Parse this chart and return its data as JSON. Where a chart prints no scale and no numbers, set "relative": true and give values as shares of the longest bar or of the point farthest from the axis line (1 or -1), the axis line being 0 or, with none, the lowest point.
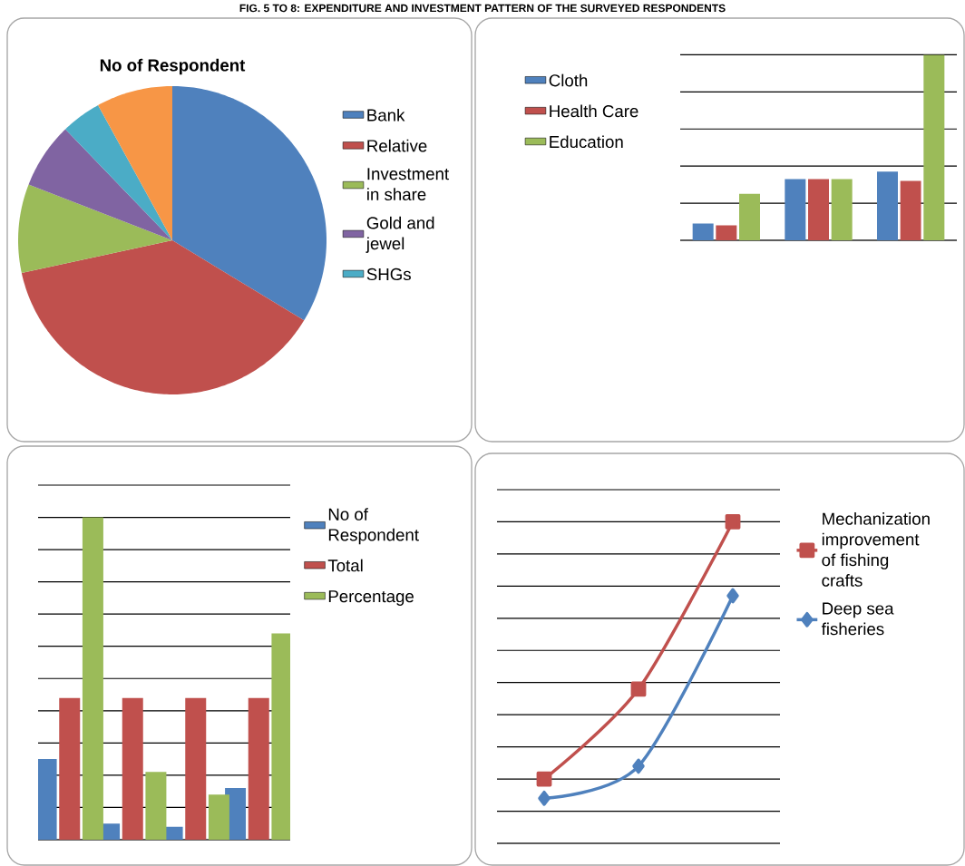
{
  "chart_data": [
    {
      "type": "pie",
      "title": "No of Respondent",
      "annotations": [
        "FIG. 5 TO 8: EXPENDITURE AND INVESTMENT PATTERN OF THE SURVEYED RESPONDENTS"
      ],
      "categories": [
        "Bank",
        "Relative",
        "Investment in share",
        "Gold and jewel",
        "SHGs",
        null
      ],
      "values": [
        33.7,
        37.9,
        9.3,
        6.9,
        4.2,
        8.0
      ],
      "colors": [
        "#4f81bd",
        "#c0504d",
        "#9bbb59",
        "#8064a2",
        "#4bacc6",
        "#f79646"
      ],
      "legend": "right"
    },
    {
      "type": "bar",
      "relative": true,
      "categories": [
        null,
        null,
        null
      ],
      "series": [
        {
          "name": "Cloth",
          "color": "#4f81bd",
          "values": [
            0.09,
            0.33,
            0.37
          ]
        },
        {
          "name": "Health Care",
          "color": "#c0504d",
          "values": [
            0.08,
            0.33,
            0.32
          ]
        },
        {
          "name": "Education",
          "color": "#9bbb59",
          "values": [
            0.25,
            0.33,
            1
          ]
        }
      ],
      "grid": "y",
      "legend": "left"
    },
    {
      "type": "bar",
      "relative": true,
      "categories": [
        null,
        null,
        null,
        null
      ],
      "series": [
        {
          "name": "No of Respondent",
          "color": "#4f81bd",
          "values": [
            0.25,
            0.05,
            0.04,
            0.16
          ]
        },
        {
          "name": "Total",
          "color": "#c0504d",
          "values": [
            0.44,
            0.44,
            0.44,
            0.44
          ]
        },
        {
          "name": "Percentage",
          "color": "#9bbb59",
          "values": [
            1,
            0.21,
            0.14,
            0.64
          ]
        }
      ],
      "grid": "y",
      "legend": "right"
    },
    {
      "type": "line",
      "relative": true,
      "categories": [
        null,
        null,
        null
      ],
      "series": [
        {
          "name": "Mechanization improvement of fishing crafts",
          "color": "#c0504d",
          "values": [
            0.2,
            0.48,
            1
          ],
          "marker": "square"
        },
        {
          "name": "Deep sea fisheries",
          "color": "#4f81bd",
          "values": [
            0.14,
            0.24,
            0.77
          ],
          "marker": "diamond"
        }
      ],
      "grid": "y",
      "legend": "right"
    }
  ]
}
